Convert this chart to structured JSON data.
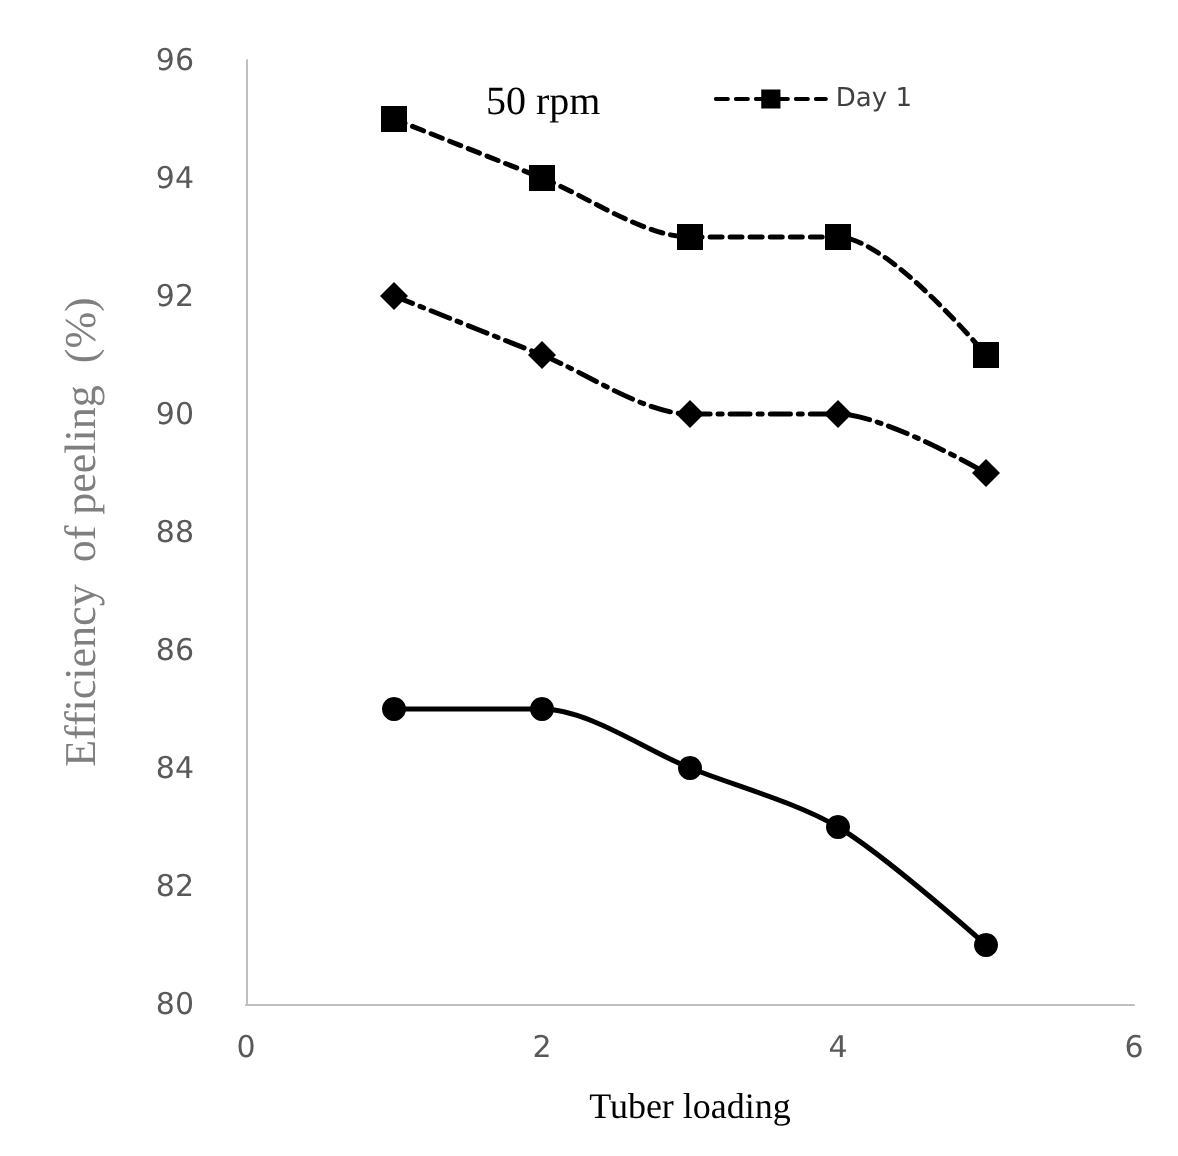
{
  "chart_data": {
    "type": "line",
    "title": "50 rpm",
    "xlabel": "Tuber loading",
    "ylabel": "Efficiency  of peeling  (%)",
    "x": [
      1,
      2,
      3,
      4,
      5
    ],
    "series": [
      {
        "name": "Day 1",
        "color": "#000000",
        "values": [
          95,
          94,
          93,
          93,
          91
        ],
        "marker": "square",
        "line_style": "dashed"
      },
      {
        "color": "#000000",
        "values": [
          92,
          91,
          90,
          90,
          89
        ],
        "marker": "diamond",
        "line_style": "dotted"
      },
      {
        "color": "#000000",
        "values": [
          85,
          85,
          84,
          83,
          81
        ],
        "marker": "circle",
        "line_style": "solid"
      }
    ],
    "xlim": [
      0,
      6
    ],
    "xticks": [
      0,
      2,
      4,
      6
    ],
    "ylim": [
      80,
      96
    ],
    "yticks": [
      80,
      82,
      84,
      86,
      88,
      90,
      92,
      94,
      96
    ],
    "grid": false,
    "legend": "top right"
  }
}
